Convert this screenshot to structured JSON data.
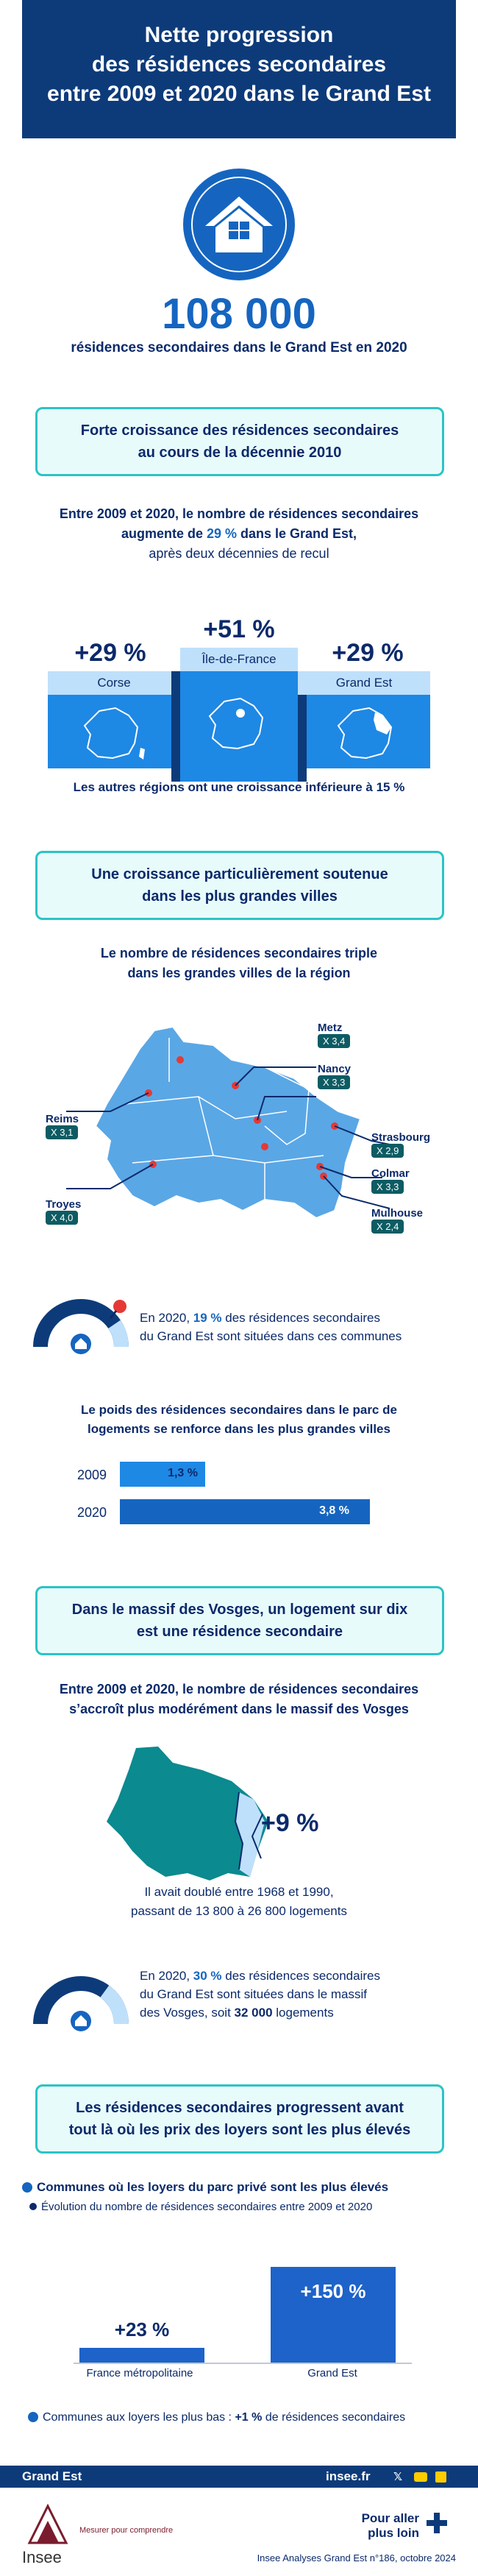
{
  "header": {
    "line1": "Nette progression",
    "line2": "des résidences secondaires",
    "line3": "entre 2009 et 2020 dans le Grand Est"
  },
  "hero": {
    "number": "108 000",
    "caption": "résidences secondaires dans le Grand Est en 2020"
  },
  "section1": {
    "title_line1": "Forte croissance des résidences secondaires",
    "title_line2": "au cours de la décennie 2010",
    "text_line1": "Entre 2009 et 2020, le nombre de résidences secondaires",
    "text_line2_pre": "augmente de ",
    "text_line2_strong": "29 %",
    "text_line2_post": " dans le Grand Est,",
    "text_line3": "après deux décennies de recul",
    "podium": [
      {
        "value": "+29 %",
        "label": "Corse"
      },
      {
        "value": "+51 %",
        "label": "Île-de-France"
      },
      {
        "value": "+29 %",
        "label": "Grand Est"
      }
    ],
    "note": "Les autres régions ont une croissance inférieure à 15 %"
  },
  "section2": {
    "title_line1": "Une croissance particulièrement soutenue",
    "title_line2": "dans les plus grandes villes",
    "subtitle_line1": "Le nombre de résidences secondaires triple",
    "subtitle_line2": "dans les grandes villes de la région",
    "cities": [
      {
        "name": "Metz",
        "factor": "X 3,4"
      },
      {
        "name": "Nancy",
        "factor": "X 3,3"
      },
      {
        "name": "Reims",
        "factor": "X 3,1"
      },
      {
        "name": "Strasbourg",
        "factor": "X 2,9"
      },
      {
        "name": "Colmar",
        "factor": "X 3,3"
      },
      {
        "name": "Mulhouse",
        "factor": "X 2,4"
      },
      {
        "name": "Troyes",
        "factor": "X 4,0"
      }
    ],
    "gauge_text_pre": "En 2020, ",
    "gauge_text_strong": "19 %",
    "gauge_text_post": " des résidences secondaires",
    "gauge_text_line2": "du Grand Est sont situées dans ces communes",
    "gauge_share": 0.19,
    "weight_title_line1": "Le poids des résidences secondaires dans le parc de",
    "weight_title_line2": "logements se renforce dans les plus grandes villes",
    "weight_bars": [
      {
        "year": "2009",
        "label": "1,3 %",
        "value": 1.3
      },
      {
        "year": "2020",
        "label": "3,8 %",
        "value": 3.8
      }
    ]
  },
  "section3": {
    "title_line1": "Dans le massif des Vosges, un logement sur dix",
    "title_line2": "est une résidence secondaire",
    "text_line1": "Entre 2009 et 2020, le nombre de résidences secondaires",
    "text_line2": "s’accroît plus modérément dans le massif des Vosges",
    "value": "+9 %",
    "note_line1": "Il avait doublé entre 1968 et 1990,",
    "note_line2": "passant de 13 800 à 26 800 logements",
    "gauge_text_pre": "En 2020, ",
    "gauge_text_strong": "30 %",
    "gauge_text_post": " des résidences secondaires",
    "gauge_text_line2": "du Grand Est sont situées dans le massif",
    "gauge_text_line3_pre": "des Vosges, soit ",
    "gauge_text_line3_strong": "32 000",
    "gauge_text_line3_post": " logements",
    "gauge_share": 0.3
  },
  "section4": {
    "title_line1": "Les résidences secondaires progressent avant",
    "title_line2": "tout là où les prix des loyers sont les plus élevés",
    "legend_title": "Communes où les loyers du parc privé sont les plus élevés",
    "legend_sub": "Évolution du nombre de résidences secondaires entre 2009 et 2020",
    "bars": [
      {
        "label": "France métropolitaine",
        "value_label": "+23 %",
        "value": 23
      },
      {
        "label": "Grand Est",
        "value_label": "+150 %",
        "value": 150
      }
    ],
    "note_pre": "Communes aux loyers les plus bas : ",
    "note_strong": "+1 %",
    "note_post": " de résidences secondaires"
  },
  "footer": {
    "region": "Grand Est",
    "site": "insee.fr",
    "logo_text": "Insee",
    "tagline": "Mesurer pour comprendre",
    "more_line1": "Pour aller",
    "more_line2": "plus loin",
    "publication": "Insee Analyses Grand Est n°186, octobre 2024",
    "social": [
      "x-icon",
      "youtube-icon",
      "linkedin-icon"
    ]
  },
  "colors": {
    "navy": "#0d3b7a",
    "blue": "#1565c0",
    "teal": "#2cc3c6",
    "dark_teal": "#0d5c63",
    "red": "#e53935"
  }
}
